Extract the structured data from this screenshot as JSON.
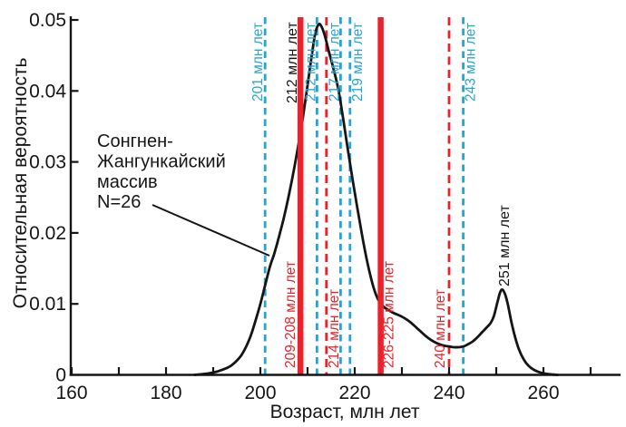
{
  "chart_data": {
    "type": "line",
    "title": "",
    "xlabel": "Возраст, млн лет",
    "ylabel": "Относительная вероятность",
    "xlim": [
      160,
      276
    ],
    "ylim": [
      0,
      0.05
    ],
    "x_major_ticks": [
      160,
      180,
      200,
      220,
      240,
      260
    ],
    "x_minor_ticks": [
      170,
      190,
      210,
      230,
      250,
      270
    ],
    "y_ticks": [
      0,
      0.01,
      0.02,
      0.03,
      0.04,
      0.05
    ],
    "y_tick_labels": [
      "0",
      "0.01",
      "0.02",
      "0.03",
      "0.04",
      "0.05"
    ],
    "grid": false,
    "legend": "none",
    "colors": {
      "curve": "#151515",
      "sample_line_red": "#e8232b",
      "reference_line_cyan": "#27a5d2"
    },
    "series": [
      {
        "name": "relative-probability-density",
        "color": "#151515",
        "points": [
          [
            186,
            0
          ],
          [
            189,
            0.0002
          ],
          [
            191,
            0.0005
          ],
          [
            193,
            0.001
          ],
          [
            194,
            0.0014
          ],
          [
            195,
            0.002
          ],
          [
            196,
            0.0028
          ],
          [
            197,
            0.004
          ],
          [
            198,
            0.0056
          ],
          [
            199,
            0.0077
          ],
          [
            200,
            0.01
          ],
          [
            201,
            0.0126
          ],
          [
            202,
            0.0152
          ],
          [
            203,
            0.0172
          ],
          [
            204,
            0.0196
          ],
          [
            205,
            0.0222
          ],
          [
            206,
            0.0252
          ],
          [
            207,
            0.0285
          ],
          [
            208,
            0.0322
          ],
          [
            209,
            0.0362
          ],
          [
            210,
            0.0408
          ],
          [
            211,
            0.0455
          ],
          [
            211.7,
            0.0483
          ],
          [
            212.4,
            0.0494
          ],
          [
            213,
            0.049
          ],
          [
            213.7,
            0.0477
          ],
          [
            214.5,
            0.0456
          ],
          [
            215.5,
            0.0431
          ],
          [
            216.5,
            0.0403
          ],
          [
            217.5,
            0.0363
          ],
          [
            218.5,
            0.0319
          ],
          [
            219.5,
            0.0277
          ],
          [
            220.5,
            0.0237
          ],
          [
            221.5,
            0.0199
          ],
          [
            222.5,
            0.0164
          ],
          [
            223.5,
            0.0135
          ],
          [
            224.5,
            0.0113
          ],
          [
            225.5,
            0.01
          ],
          [
            226.5,
            0.0094
          ],
          [
            228,
            0.0088
          ],
          [
            229,
            0.0085
          ],
          [
            230,
            0.0082
          ],
          [
            231,
            0.0078
          ],
          [
            232,
            0.0073
          ],
          [
            233,
            0.0067
          ],
          [
            234,
            0.0061
          ],
          [
            235,
            0.0055
          ],
          [
            236,
            0.005
          ],
          [
            237,
            0.0046
          ],
          [
            238,
            0.0043
          ],
          [
            239,
            0.0041
          ],
          [
            240,
            0.004
          ],
          [
            241,
            0.0039
          ],
          [
            242,
            0.0039
          ],
          [
            243,
            0.004
          ],
          [
            244,
            0.0043
          ],
          [
            245,
            0.0047
          ],
          [
            246,
            0.0053
          ],
          [
            247,
            0.006
          ],
          [
            248,
            0.0067
          ],
          [
            248.8,
            0.0073
          ],
          [
            249.5,
            0.0083
          ],
          [
            250.2,
            0.0101
          ],
          [
            250.8,
            0.0116
          ],
          [
            251.3,
            0.012
          ],
          [
            251.9,
            0.0113
          ],
          [
            252.5,
            0.0098
          ],
          [
            253.2,
            0.0075
          ],
          [
            254,
            0.0053
          ],
          [
            254.8,
            0.0036
          ],
          [
            255.8,
            0.0022
          ],
          [
            256.8,
            0.0013
          ],
          [
            258,
            0.0007
          ],
          [
            259.5,
            0.0003
          ],
          [
            261,
            0.0001
          ],
          [
            263,
            0
          ]
        ]
      }
    ],
    "vertical_lines": [
      {
        "age": 201,
        "label": "201 млн лет",
        "kind": "reference",
        "color": "#27a5d2",
        "dashed": true,
        "thick": false,
        "label_side": "top",
        "label_dx": -3
      },
      {
        "age": 208.5,
        "label": "209-208 млн лет",
        "kind": "sample",
        "color": "#e8232b",
        "dashed": false,
        "thick": true,
        "label_side": "bottom",
        "label_dx": -6
      },
      {
        "age": 212,
        "label": "212 млн лет",
        "kind": "reference",
        "color": "#27a5d2",
        "dashed": true,
        "thick": false,
        "label_side": "top",
        "label_dx": -2
      },
      {
        "age": 214,
        "label": "214 млн лет",
        "kind": "sample",
        "color": "#e8232b",
        "dashed": true,
        "thick": false,
        "label_side": "bottom",
        "label_dx": 13
      },
      {
        "age": 217,
        "label": "217 млн лет",
        "kind": "reference",
        "color": "#27a5d2",
        "dashed": true,
        "thick": false,
        "label_side": "top",
        "label_dx": -2
      },
      {
        "age": 219,
        "label": "219 млн лет",
        "kind": "reference",
        "color": "#27a5d2",
        "dashed": true,
        "thick": false,
        "label_side": "top",
        "label_dx": 13
      },
      {
        "age": 225.5,
        "label": "226-225 млн лет",
        "kind": "sample",
        "color": "#e8232b",
        "dashed": false,
        "thick": true,
        "label_side": "bottom",
        "label_dx": 14
      },
      {
        "age": 240,
        "label": "240 млн лет",
        "kind": "sample",
        "color": "#e8232b",
        "dashed": true,
        "thick": false,
        "label_side": "bottom",
        "label_dx": -5
      },
      {
        "age": 243,
        "label": "243 млн лет",
        "kind": "reference",
        "color": "#27a5d2",
        "dashed": true,
        "thick": false,
        "label_side": "top",
        "label_dx": 13
      }
    ],
    "peak_labels": [
      {
        "text": "212 млн лет",
        "x": 327,
        "y": 114
      },
      {
        "text": "251 млн лет",
        "x": 561,
        "y": 316
      }
    ],
    "annotation": {
      "lines": [
        "Сонгнен-",
        "Жангункайский",
        "массив",
        "N=26"
      ]
    }
  }
}
